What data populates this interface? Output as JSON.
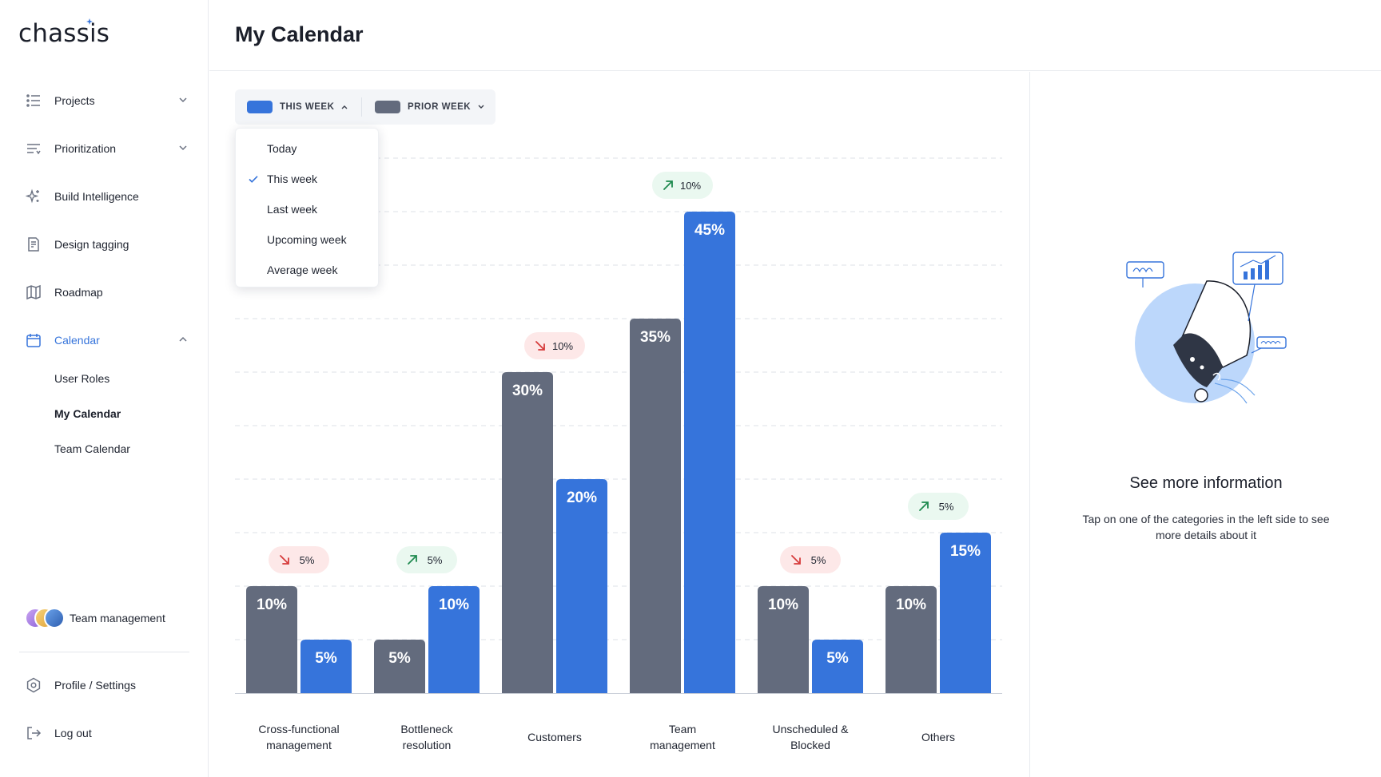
{
  "app": {
    "logo": "chassis"
  },
  "sidebar": {
    "items": [
      {
        "label": "Projects",
        "icon": "list-icon",
        "has_chevron": true,
        "expanded": false
      },
      {
        "label": "Prioritization",
        "icon": "filter-lines-icon",
        "has_chevron": true,
        "expanded": false
      },
      {
        "label": "Build Intelligence",
        "icon": "sparkle-icon",
        "has_chevron": false
      },
      {
        "label": "Design tagging",
        "icon": "document-icon",
        "has_chevron": false
      },
      {
        "label": "Roadmap",
        "icon": "map-icon",
        "has_chevron": false
      },
      {
        "label": "Calendar",
        "icon": "calendar-icon",
        "has_chevron": true,
        "expanded": true,
        "active": true
      }
    ],
    "calendar_sub": [
      "User Roles",
      "My Calendar",
      "Team Calendar"
    ],
    "current_sub": "My Calendar",
    "team": {
      "label": "Team management"
    },
    "profile_label": "Profile / Settings",
    "logout_label": "Log out"
  },
  "header": {
    "title": "My Calendar"
  },
  "legend": {
    "this_week": {
      "label": "THIS WEEK",
      "color": "#3674db"
    },
    "prior_week": {
      "label": "PRIOR WEEK",
      "color": "#636b7d"
    }
  },
  "dropdown": {
    "options": [
      "Today",
      "This week",
      "Last week",
      "Upcoming week",
      "Average week"
    ],
    "selected": "This week"
  },
  "chart_data": {
    "type": "bar",
    "categories": [
      [
        "Cross-functional",
        "management"
      ],
      [
        "Bottleneck",
        "resolution"
      ],
      [
        "Customers"
      ],
      [
        "Team",
        "management"
      ],
      [
        "Unscheduled &",
        "Blocked"
      ],
      [
        "Others"
      ]
    ],
    "series": [
      {
        "name": "PRIOR WEEK",
        "color": "#636b7d",
        "values": [
          10,
          5,
          30,
          35,
          10,
          10
        ]
      },
      {
        "name": "THIS WEEK",
        "color": "#3674db",
        "values": [
          5,
          10,
          20,
          45,
          5,
          15
        ]
      }
    ],
    "changes": [
      {
        "direction": "down",
        "label": "5%"
      },
      {
        "direction": "up",
        "label": "5%"
      },
      {
        "direction": "down",
        "label": "10%"
      },
      {
        "direction": "up",
        "label": "10%"
      },
      {
        "direction": "down",
        "label": "5%"
      },
      {
        "direction": "up",
        "label": "5%"
      }
    ],
    "value_suffix": "%",
    "ylim": [
      0,
      50
    ],
    "grid": true
  },
  "info_panel": {
    "title": "See more information",
    "description": "Tap on one of the categories in the left side to see more details about it"
  },
  "colors": {
    "accent": "#3674db",
    "prior": "#636b7d",
    "up_bg": "#eaf8f0",
    "up_fg": "#1f8a4f",
    "down_bg": "#fde8e8",
    "down_fg": "#d63b3b"
  }
}
